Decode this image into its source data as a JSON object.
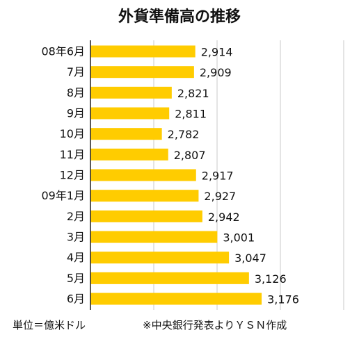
{
  "chart_data": {
    "type": "bar",
    "orientation": "horizontal",
    "title": "外貨準備高の推移",
    "categories": [
      "08年6月",
      "7月",
      "8月",
      "9月",
      "10月",
      "11月",
      "12月",
      "09年1月",
      "2月",
      "3月",
      "4月",
      "5月",
      "6月"
    ],
    "values": [
      2914,
      2909,
      2821,
      2811,
      2782,
      2807,
      2917,
      2927,
      2942,
      3001,
      3047,
      3126,
      3176
    ],
    "value_labels": [
      "2,914",
      "2,909",
      "2,821",
      "2,811",
      "2,782",
      "2,807",
      "2,917",
      "2,927",
      "2,942",
      "3,001",
      "3,047",
      "3,126",
      "3,176"
    ],
    "xlim": [
      2500,
      3500
    ],
    "grid": true,
    "bar_color": "#FFCC00"
  },
  "footer": {
    "unit": "単位＝億米ドル",
    "source": "※中央銀行発表よりＹＳＮ作成"
  }
}
